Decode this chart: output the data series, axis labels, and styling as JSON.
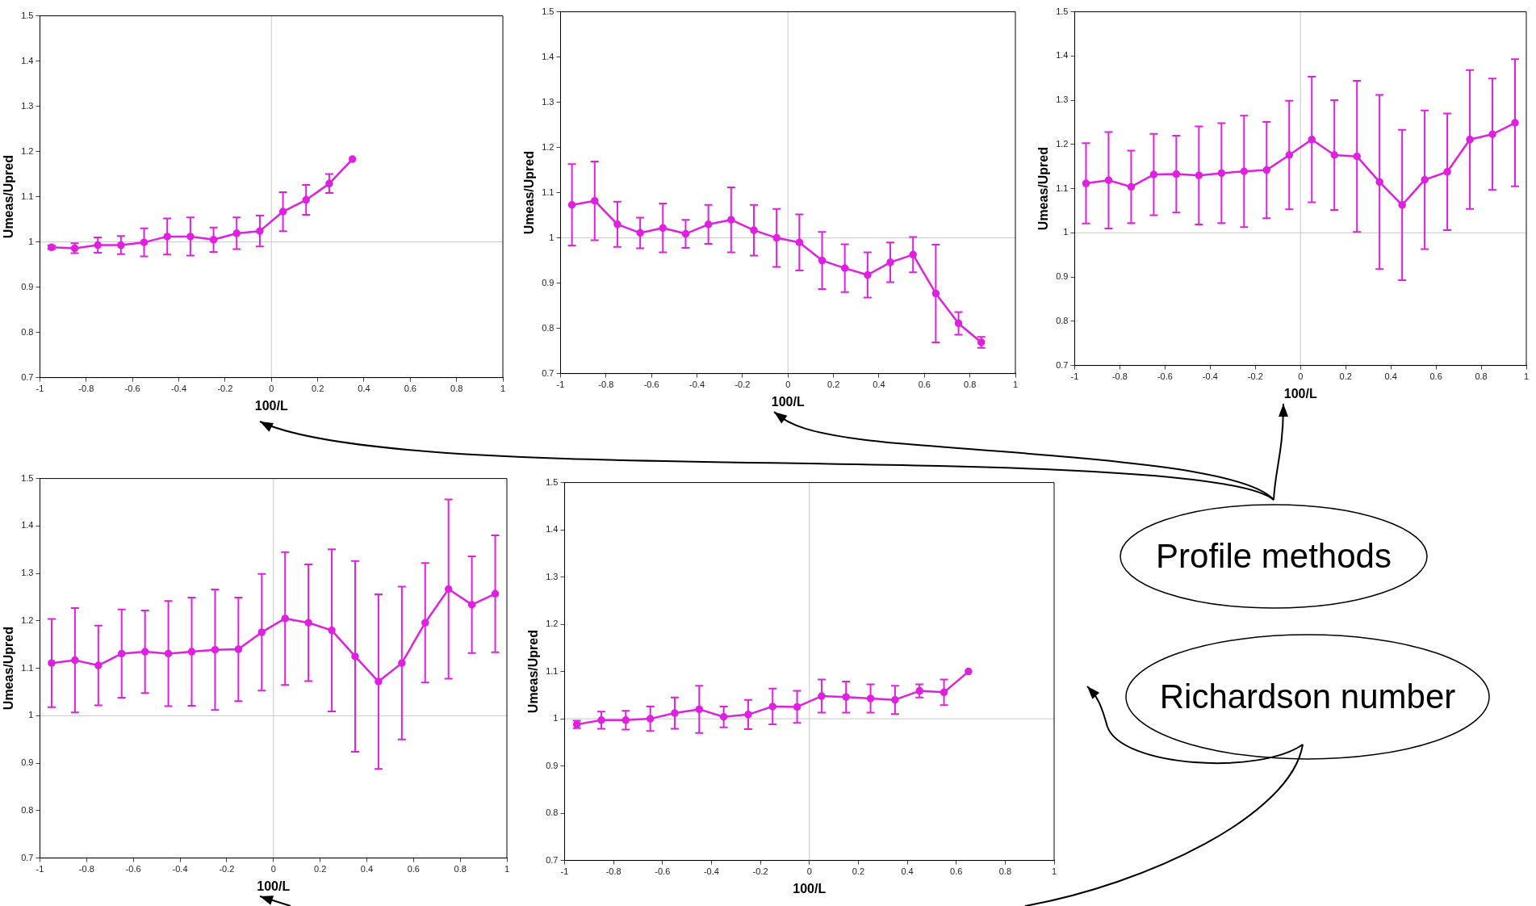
{
  "chart_data": [
    {
      "type": "line",
      "xlabel": "100/L",
      "ylabel": "Umeas/Upred",
      "xlim": [
        -1,
        1
      ],
      "ylim": [
        0.7,
        1.5
      ],
      "xticks": [
        -1,
        -0.8,
        -0.6,
        -0.4,
        -0.2,
        0,
        0.2,
        0.4,
        0.6,
        0.8,
        1
      ],
      "yticks": [
        0.7,
        0.8,
        0.9,
        1,
        1.1,
        1.2,
        1.3,
        1.4,
        1.5
      ],
      "marker": "circle",
      "line_style": "solid",
      "legend": false,
      "grid": false,
      "ref_lines": [
        {
          "axis": "x",
          "value": 0,
          "color": "#c8c8c8"
        },
        {
          "axis": "y",
          "value": 1,
          "color": "#c8c8c8"
        }
      ],
      "series": [
        {
          "color": "#e020e0",
          "x": [
            -0.95,
            -0.85,
            -0.75,
            -0.65,
            -0.55,
            -0.45,
            -0.35,
            -0.25,
            -0.15,
            -0.05,
            0.05,
            0.15,
            0.25,
            0.35
          ],
          "values": [
            0.988,
            0.986,
            0.993,
            0.993,
            0.999,
            1.012,
            1.012,
            1.005,
            1.019,
            1.024,
            1.067,
            1.093,
            1.129,
            1.183
          ],
          "errors": [
            0.004,
            0.011,
            0.017,
            0.02,
            0.031,
            0.04,
            0.042,
            0.027,
            0.035,
            0.034,
            0.043,
            0.033,
            0.021,
            null
          ]
        }
      ]
    },
    {
      "type": "line",
      "xlabel": "100/L",
      "ylabel": "Umeas/Upred",
      "xlim": [
        -1,
        1
      ],
      "ylim": [
        0.7,
        1.5
      ],
      "xticks": [
        -1,
        -0.8,
        -0.6,
        -0.4,
        -0.2,
        0,
        0.2,
        0.4,
        0.6,
        0.8,
        1
      ],
      "yticks": [
        0.7,
        0.8,
        0.9,
        1,
        1.1,
        1.2,
        1.3,
        1.4,
        1.5
      ],
      "marker": "circle",
      "line_style": "solid",
      "legend": false,
      "grid": false,
      "ref_lines": [
        {
          "axis": "x",
          "value": 0,
          "color": "#c8c8c8"
        },
        {
          "axis": "y",
          "value": 1,
          "color": "#c8c8c8"
        }
      ],
      "series": [
        {
          "color": "#e020e0",
          "x": [
            -0.95,
            -0.85,
            -0.75,
            -0.65,
            -0.55,
            -0.45,
            -0.35,
            -0.25,
            -0.15,
            -0.05,
            0.05,
            0.15,
            0.25,
            0.35,
            0.45,
            0.55,
            0.65,
            0.75,
            0.85
          ],
          "values": [
            1.073,
            1.082,
            1.03,
            1.011,
            1.022,
            1.009,
            1.03,
            1.04,
            1.017,
            1.0,
            0.99,
            0.95,
            0.933,
            0.918,
            0.946,
            0.963,
            0.877,
            0.811,
            0.769
          ],
          "errors": [
            0.09,
            0.087,
            0.05,
            0.034,
            0.054,
            0.031,
            0.043,
            0.072,
            0.056,
            0.064,
            0.062,
            0.063,
            0.053,
            0.05,
            0.044,
            0.039,
            0.108,
            0.025,
            0.012
          ]
        }
      ]
    },
    {
      "type": "line",
      "xlabel": "100/L",
      "ylabel": "Umeas/Upred",
      "xlim": [
        -1,
        1
      ],
      "ylim": [
        0.7,
        1.5
      ],
      "xticks": [
        -1,
        -0.8,
        -0.6,
        -0.4,
        -0.2,
        0,
        0.2,
        0.4,
        0.6,
        0.8,
        1
      ],
      "yticks": [
        0.7,
        0.8,
        0.9,
        1,
        1.1,
        1.2,
        1.3,
        1.4,
        1.5
      ],
      "marker": "circle",
      "line_style": "solid",
      "legend": false,
      "grid": false,
      "ref_lines": [
        {
          "axis": "x",
          "value": 0,
          "color": "#c8c8c8"
        },
        {
          "axis": "y",
          "value": 1,
          "color": "#c8c8c8"
        }
      ],
      "series": [
        {
          "color": "#e020e0",
          "x": [
            -0.95,
            -0.85,
            -0.75,
            -0.65,
            -0.55,
            -0.45,
            -0.35,
            -0.25,
            -0.15,
            -0.05,
            0.05,
            0.15,
            0.25,
            0.35,
            0.45,
            0.55,
            0.65,
            0.75,
            0.85,
            0.95
          ],
          "values": [
            1.112,
            1.119,
            1.104,
            1.132,
            1.133,
            1.13,
            1.135,
            1.139,
            1.142,
            1.176,
            1.211,
            1.176,
            1.173,
            1.115,
            1.063,
            1.12,
            1.138,
            1.211,
            1.223,
            1.249
          ],
          "errors": [
            0.091,
            0.109,
            0.082,
            0.092,
            0.087,
            0.111,
            0.113,
            0.126,
            0.109,
            0.123,
            0.142,
            0.124,
            0.171,
            0.197,
            0.17,
            0.157,
            0.132,
            0.157,
            0.126,
            0.144
          ]
        }
      ]
    },
    {
      "type": "line",
      "xlabel": "100/L",
      "ylabel": "Umeas/Upred",
      "xlim": [
        -1,
        1
      ],
      "ylim": [
        0.7,
        1.5
      ],
      "xticks": [
        -1,
        -0.8,
        -0.6,
        -0.4,
        -0.2,
        0,
        0.2,
        0.4,
        0.6,
        0.8,
        1
      ],
      "yticks": [
        0.7,
        0.8,
        0.9,
        1,
        1.1,
        1.2,
        1.3,
        1.4,
        1.5
      ],
      "marker": "circle",
      "line_style": "solid",
      "legend": false,
      "grid": false,
      "ref_lines": [
        {
          "axis": "x",
          "value": 0,
          "color": "#c8c8c8"
        },
        {
          "axis": "y",
          "value": 1,
          "color": "#c8c8c8"
        }
      ],
      "series": [
        {
          "color": "#e020e0",
          "x": [
            -0.95,
            -0.85,
            -0.75,
            -0.65,
            -0.55,
            -0.45,
            -0.35,
            -0.25,
            -0.15,
            -0.05,
            0.05,
            0.15,
            0.25,
            0.35,
            0.45,
            0.55,
            0.65,
            0.75,
            0.85,
            0.95
          ],
          "values": [
            1.111,
            1.117,
            1.106,
            1.131,
            1.135,
            1.131,
            1.135,
            1.139,
            1.14,
            1.176,
            1.205,
            1.196,
            1.18,
            1.125,
            1.072,
            1.111,
            1.196,
            1.267,
            1.234,
            1.257
          ],
          "errors": [
            0.093,
            0.11,
            0.084,
            0.093,
            0.087,
            0.111,
            0.114,
            0.127,
            0.109,
            0.123,
            0.14,
            0.123,
            0.171,
            0.201,
            0.184,
            0.161,
            0.126,
            0.189,
            0.102,
            0.123
          ]
        }
      ]
    },
    {
      "type": "line",
      "xlabel": "100/L",
      "ylabel": "Umeas/Upred",
      "xlim": [
        -1,
        1
      ],
      "ylim": [
        0.7,
        1.5
      ],
      "xticks": [
        -1,
        -0.8,
        -0.6,
        -0.4,
        -0.2,
        0,
        0.2,
        0.4,
        0.6,
        0.8,
        1
      ],
      "yticks": [
        0.7,
        0.8,
        0.9,
        1,
        1.1,
        1.2,
        1.3,
        1.4,
        1.5
      ],
      "marker": "circle",
      "line_style": "solid",
      "legend": false,
      "grid": false,
      "ref_lines": [
        {
          "axis": "x",
          "value": 0,
          "color": "#c8c8c8"
        },
        {
          "axis": "y",
          "value": 1,
          "color": "#c8c8c8"
        }
      ],
      "series": [
        {
          "color": "#e020e0",
          "x": [
            -0.95,
            -0.85,
            -0.75,
            -0.65,
            -0.55,
            -0.45,
            -0.35,
            -0.25,
            -0.15,
            -0.05,
            0.05,
            0.15,
            0.25,
            0.35,
            0.45,
            0.55,
            0.65
          ],
          "values": [
            0.988,
            0.997,
            0.997,
            1.0,
            1.012,
            1.02,
            1.004,
            1.009,
            1.026,
            1.025,
            1.048,
            1.046,
            1.043,
            1.04,
            1.059,
            1.056,
            1.1
          ],
          "errors": [
            0.008,
            0.018,
            0.02,
            0.026,
            0.033,
            0.05,
            0.022,
            0.031,
            0.038,
            0.034,
            0.035,
            0.033,
            0.03,
            0.03,
            0.014,
            0.027,
            null
          ]
        }
      ]
    },
    {
      "type": "other",
      "annotations": [
        "Profile methods",
        "Richardson number"
      ]
    }
  ]
}
